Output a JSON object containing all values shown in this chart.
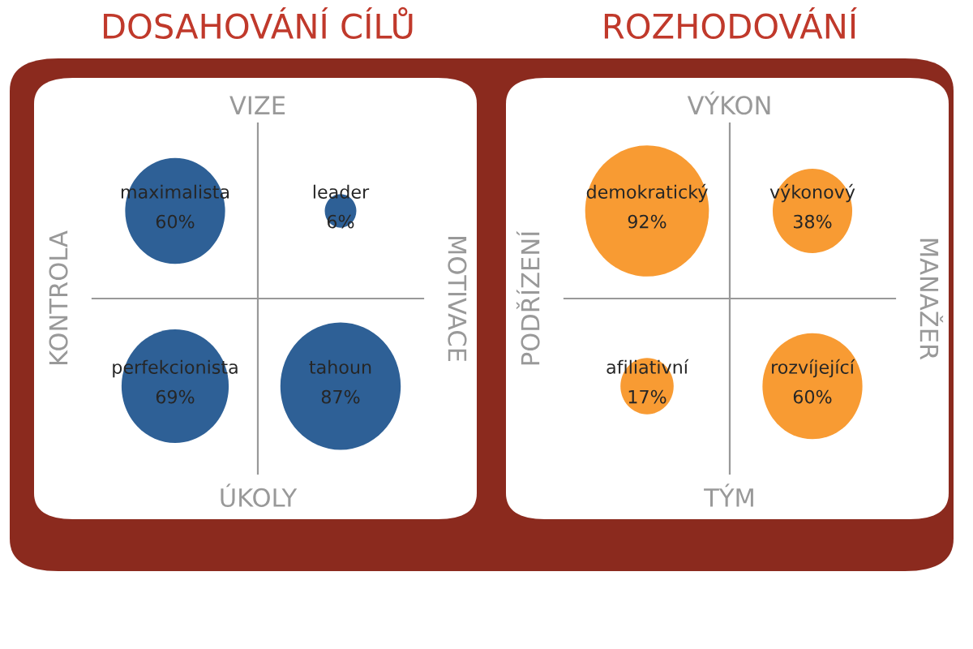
{
  "chart_data": [
    {
      "type": "other",
      "title": "DOSAHOVÁNÍ CÍLŮ",
      "x2label": "VIZE",
      "xlabel": "ÚKOLY",
      "ylabel": "KONTROLA",
      "y2label": "MOTIVACE",
      "categories": [
        "maximalista",
        "leader",
        "perfekcionista",
        "tahoun"
      ],
      "values": [
        60,
        6,
        69,
        87
      ],
      "value_labels": [
        "60%",
        "6%",
        "69%",
        "87%"
      ],
      "color": "#2e6096"
    },
    {
      "type": "other",
      "title": "ROZHODOVÁNÍ",
      "x2label": "VÝKON",
      "xlabel": "TÝM",
      "ylabel": "PODŘÍZENÍ",
      "y2label": "MANAŽER",
      "categories": [
        "demokratický",
        "výkonový",
        "afiliativní",
        "rozvíjející"
      ],
      "values": [
        92,
        38,
        17,
        60
      ],
      "value_labels": [
        "92%",
        "38%",
        "17%",
        "60%"
      ],
      "color": "#f89b33"
    }
  ]
}
